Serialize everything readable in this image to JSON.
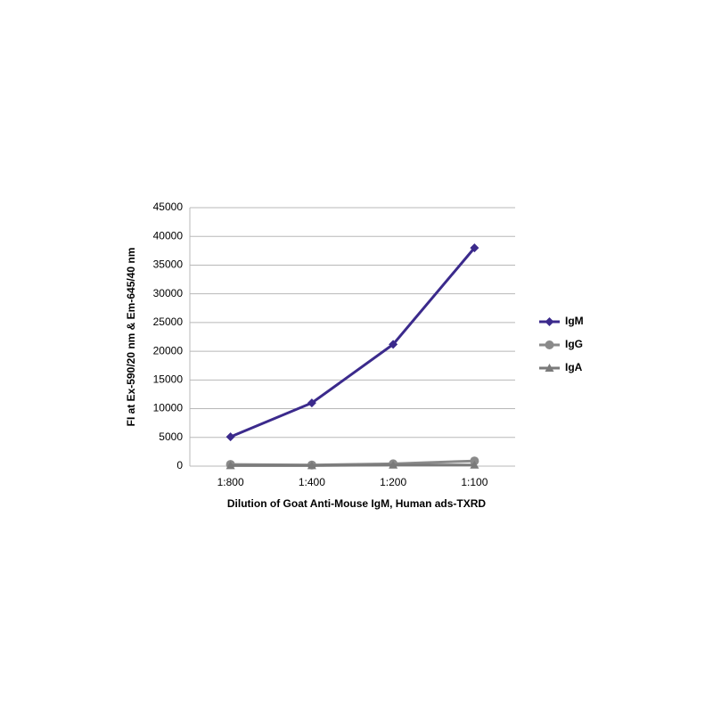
{
  "chart_data": {
    "type": "line",
    "x_label": "Dilution of Goat Anti-Mouse IgM, Human ads-TXRD",
    "y_label": "FI at Ex-590/20 nm & Em-645/40 nm",
    "categories": [
      "1:800",
      "1:400",
      "1:200",
      "1:100"
    ],
    "series": [
      {
        "name": "IgM",
        "color": "#3b2a8c",
        "marker": "diamond",
        "values": [
          5100,
          11000,
          21200,
          38000
        ]
      },
      {
        "name": "IgG",
        "color": "#8a8a8a",
        "marker": "circle",
        "values": [
          300,
          200,
          400,
          900
        ]
      },
      {
        "name": "IgA",
        "color": "#7a7a7a",
        "marker": "triangle",
        "values": [
          100,
          100,
          200,
          200
        ]
      }
    ],
    "ylim": [
      0,
      45000
    ],
    "yticks": [
      0,
      5000,
      10000,
      15000,
      20000,
      25000,
      30000,
      35000,
      40000,
      45000
    ],
    "grid": true,
    "legend": "right"
  }
}
